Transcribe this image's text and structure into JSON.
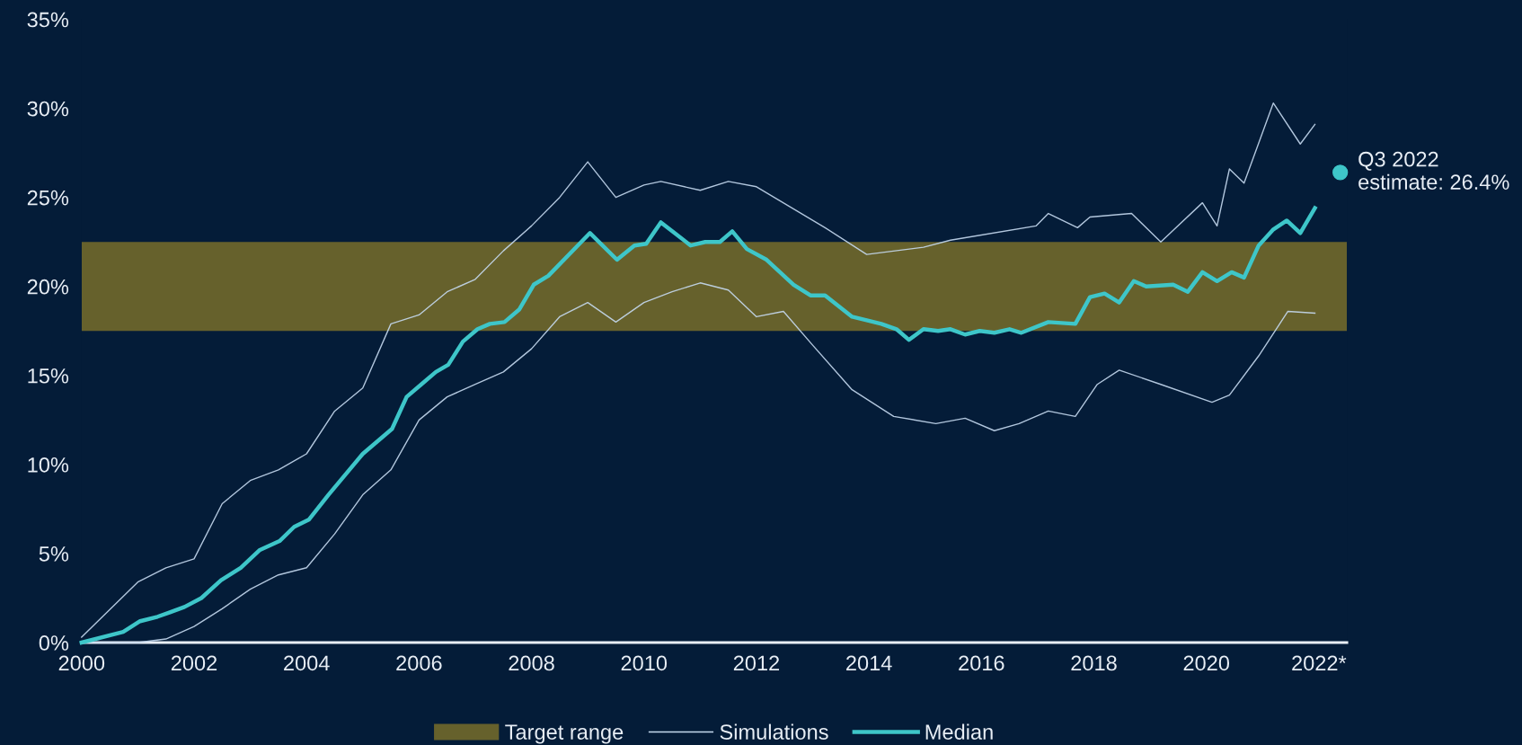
{
  "chart_data": {
    "type": "line",
    "xlim": [
      2000,
      2022.5
    ],
    "ylim": [
      0,
      35
    ],
    "xticks": [
      2000,
      2002,
      2004,
      2006,
      2008,
      2010,
      2012,
      2014,
      2016,
      2018,
      2020,
      {
        "value": 2022,
        "label": "2022*"
      }
    ],
    "yticks": [
      {
        "value": 0,
        "label": "0%"
      },
      {
        "value": 5,
        "label": "5%"
      },
      {
        "value": 10,
        "label": "10%"
      },
      {
        "value": 15,
        "label": "15%"
      },
      {
        "value": 20,
        "label": "20%"
      },
      {
        "value": 25,
        "label": "25%"
      },
      {
        "value": 30,
        "label": "30%"
      },
      {
        "value": 35,
        "label": "35%"
      }
    ],
    "grid": false,
    "legend": "bottom",
    "bands": [
      {
        "axis": "y",
        "from": 17.5,
        "to": 22.5,
        "label": "Target range",
        "color": "#66612c"
      }
    ],
    "series": [
      {
        "name": "Simulations",
        "color": "#c5d9ef",
        "x": [
          2000,
          2001,
          2001.5,
          2002,
          2002.5,
          2003,
          2003.5,
          2004,
          2004.5,
          2005,
          2005.5,
          2006,
          2006.5,
          2007,
          2007.5,
          2008,
          2008.5,
          2009,
          2009.5,
          2010,
          2010.3,
          2011,
          2011.5,
          2012,
          2013.22,
          2013.96,
          2014.97,
          2015.45,
          2016.97,
          2017.19,
          2017.71,
          2017.93,
          2018.67,
          2019.19,
          2019.93,
          2020.19,
          2020.41,
          2020.67,
          2021.19,
          2021.67,
          2021.93
        ],
        "values": [
          0.3,
          3.4,
          4.2,
          4.7,
          7.8,
          9.1,
          9.7,
          10.6,
          13.0,
          14.3,
          17.9,
          18.4,
          19.7,
          20.4,
          22.0,
          23.4,
          25.0,
          27.0,
          25.0,
          25.7,
          25.9,
          25.4,
          25.9,
          25.6,
          23.3,
          21.8,
          22.2,
          22.6,
          23.4,
          24.1,
          23.3,
          23.9,
          24.1,
          22.5,
          24.7,
          23.4,
          26.6,
          25.8,
          30.3,
          28.0,
          29.1
        ]
      },
      {
        "color": "#c5d9ef",
        "x": [
          2000,
          2001,
          2001.5,
          2002,
          2002.5,
          2003,
          2003.5,
          2004,
          2004.5,
          2005,
          2005.5,
          2006,
          2006.5,
          2007,
          2007.5,
          2008,
          2008.5,
          2009,
          2009.5,
          2010,
          2010.5,
          2011,
          2011.5,
          2012,
          2012.48,
          2013,
          2013.7,
          2014.44,
          2015.19,
          2015.71,
          2016.23,
          2016.67,
          2017.19,
          2017.67,
          2018.06,
          2018.45,
          2019.19,
          2020.1,
          2020.41,
          2020.93,
          2021.45,
          2021.93
        ],
        "values": [
          0,
          0,
          0.2,
          0.9,
          1.9,
          3.0,
          3.8,
          4.2,
          6.1,
          8.3,
          9.7,
          12.5,
          13.8,
          14.5,
          15.2,
          16.5,
          18.3,
          19.1,
          18.0,
          19.1,
          19.7,
          20.2,
          19.8,
          18.3,
          18.6,
          16.7,
          14.2,
          12.7,
          12.3,
          12.6,
          11.9,
          12.3,
          13.0,
          12.7,
          14.5,
          15.3,
          14.5,
          13.5,
          13.9,
          16.1,
          18.6,
          18.5
        ]
      },
      {
        "name": "Median",
        "color": "#3ec6c9",
        "x": [
          2000,
          2000.74,
          2001.04,
          2001.35,
          2001.57,
          2001.83,
          2002.13,
          2002.48,
          2002.83,
          2003.17,
          2003.52,
          2003.78,
          2004.04,
          2004.39,
          2005.0,
          2005.52,
          2005.78,
          2006.04,
          2006.3,
          2006.52,
          2006.78,
          2007.04,
          2007.26,
          2007.52,
          2007.78,
          2008.04,
          2008.3,
          2009.04,
          2009.52,
          2009.83,
          2010.04,
          2010.3,
          2010.83,
          2011.09,
          2011.35,
          2011.57,
          2011.83,
          2012.18,
          2012.66,
          2012.96,
          2013.22,
          2013.7,
          2014.22,
          2014.49,
          2014.71,
          2014.97,
          2015.23,
          2015.45,
          2015.71,
          2015.97,
          2016.23,
          2016.5,
          2016.71,
          2017.19,
          2017.67,
          2017.93,
          2018.19,
          2018.45,
          2018.71,
          2018.93,
          2019.41,
          2019.67,
          2019.93,
          2020.19,
          2020.45,
          2020.67,
          2020.93,
          2021.19,
          2021.43,
          2021.67,
          2021.93
        ],
        "values": [
          0,
          0.6,
          1.2,
          1.45,
          1.7,
          2.0,
          2.5,
          3.5,
          4.2,
          5.2,
          5.7,
          6.5,
          6.9,
          8.3,
          10.6,
          12.0,
          13.8,
          14.5,
          15.2,
          15.6,
          16.9,
          17.6,
          17.9,
          18.0,
          18.7,
          20.1,
          20.6,
          23.0,
          21.5,
          22.3,
          22.4,
          23.6,
          22.3,
          22.5,
          22.5,
          23.1,
          22.1,
          21.5,
          20.1,
          19.5,
          19.5,
          18.3,
          17.9,
          17.6,
          17.0,
          17.6,
          17.5,
          17.6,
          17.3,
          17.5,
          17.4,
          17.6,
          17.4,
          18.0,
          17.9,
          19.4,
          19.6,
          19.1,
          20.3,
          20.0,
          20.1,
          19.7,
          20.8,
          20.3,
          20.8,
          20.5,
          22.3,
          23.2,
          23.7,
          23.0,
          24.4
        ]
      },
      {
        "type": "scatter",
        "color": "#3ec6c9",
        "x": [
          2022.38
        ],
        "values": [
          26.4
        ]
      }
    ],
    "annotations": [
      {
        "text": "Q3 2022\nestimate: 26.4%",
        "x": 2022.38,
        "y": 26.4
      }
    ]
  }
}
